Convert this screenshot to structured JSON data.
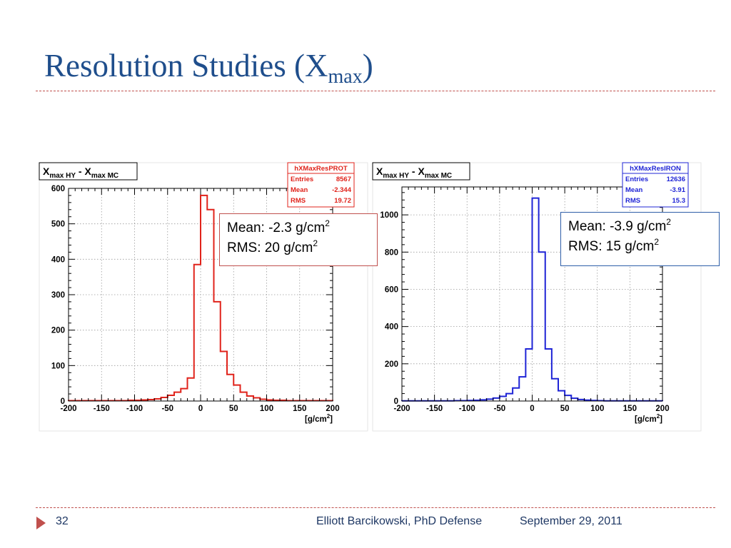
{
  "slide": {
    "title_main": "Resolution Studies (X",
    "title_sub": "max",
    "title_close": ")",
    "accent_color": "#c0504d",
    "title_color": "#1f4e8c"
  },
  "footer": {
    "page_number": "32",
    "author": "Elliott Barcikowski, PhD Defense",
    "date": "September 29, 2011",
    "icon": "right-triangle-icon"
  },
  "chart_data": [
    {
      "type": "histogram",
      "title": {
        "x": "X",
        "sub1": "max HY",
        "minus": " - X",
        "sub2": "max MC"
      },
      "xunit": "[g/cm",
      "xunit_sup": "2",
      "xunit_close": "]",
      "xlim": [
        -200,
        200
      ],
      "ylim": [
        0,
        600
      ],
      "xticks": [
        -200,
        -150,
        -100,
        -50,
        0,
        50,
        100,
        150,
        200
      ],
      "yticks": [
        0,
        100,
        200,
        300,
        400,
        500,
        600
      ],
      "grid": true,
      "color": "#e0231b",
      "bin_edges": [
        -200,
        -190,
        -180,
        -170,
        -160,
        -150,
        -140,
        -130,
        -120,
        -110,
        -100,
        -90,
        -80,
        -70,
        -60,
        -50,
        -40,
        -30,
        -20,
        -10,
        0,
        10,
        20,
        30,
        40,
        50,
        60,
        70,
        80,
        90,
        100,
        110,
        120,
        130,
        140,
        150,
        160,
        170,
        180,
        190,
        200
      ],
      "counts": [
        1,
        1,
        1,
        1,
        1,
        1,
        1,
        1,
        1,
        2,
        2,
        3,
        4,
        6,
        10,
        16,
        25,
        35,
        65,
        385,
        580,
        540,
        280,
        140,
        75,
        45,
        25,
        14,
        9,
        5,
        3,
        2,
        2,
        1,
        1,
        1,
        1,
        1,
        1,
        1
      ],
      "stats": {
        "name": "hXMaxResPROT",
        "entries_label": "Entries",
        "entries": "8567",
        "mean_label": "Mean",
        "mean": "-2.344",
        "rms_label": "RMS",
        "rms": "19.72"
      },
      "callout": {
        "line1": "Mean: -2.3 g/cm",
        "line1_sup": "2",
        "line2": "RMS: 20 g/cm",
        "line2_sup": "2",
        "border_color": "#c0504d"
      }
    },
    {
      "type": "histogram",
      "title": {
        "x": "X",
        "sub1": "max HY",
        "minus": " - X",
        "sub2": "max MC"
      },
      "xunit": "[g/cm",
      "xunit_sup": "2",
      "xunit_close": "]",
      "xlim": [
        -200,
        200
      ],
      "ylim": [
        0,
        1150
      ],
      "xticks": [
        -200,
        -150,
        -100,
        -50,
        0,
        50,
        100,
        150,
        200
      ],
      "yticks": [
        0,
        200,
        400,
        600,
        800,
        1000
      ],
      "grid": true,
      "color": "#1f24d6",
      "bin_edges": [
        -200,
        -190,
        -180,
        -170,
        -160,
        -150,
        -140,
        -130,
        -120,
        -110,
        -100,
        -90,
        -80,
        -70,
        -60,
        -50,
        -40,
        -30,
        -20,
        -10,
        0,
        10,
        20,
        30,
        40,
        50,
        60,
        70,
        80,
        90,
        100,
        110,
        120,
        130,
        140,
        150,
        160,
        170,
        180,
        190,
        200
      ],
      "counts": [
        1,
        1,
        1,
        1,
        1,
        1,
        1,
        1,
        2,
        2,
        3,
        4,
        6,
        10,
        16,
        25,
        40,
        70,
        130,
        280,
        1090,
        800,
        280,
        120,
        55,
        30,
        15,
        8,
        5,
        3,
        2,
        1,
        1,
        1,
        1,
        1,
        1,
        1,
        1,
        1
      ],
      "stats": {
        "name": "hXMaxResIRON",
        "entries_label": "Entries",
        "entries": "12636",
        "mean_label": "Mean",
        "mean": "-3.91",
        "rms_label": "RMS",
        "rms": "15.3"
      },
      "callout": {
        "line1": "Mean: -3.9 g/cm",
        "line1_sup": "2",
        "line2": "RMS: 15 g/cm",
        "line2_sup": "2",
        "border_color": "#2e5ea8"
      }
    }
  ]
}
